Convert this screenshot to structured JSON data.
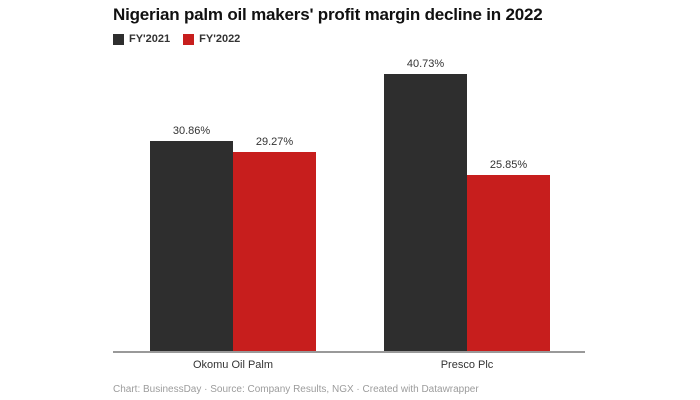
{
  "title": "Nigerian palm oil makers' profit margin decline in 2022",
  "footer": "Chart: BusinessDay · Source: Company Results, NGX · Created with Datawrapper",
  "chart_data": {
    "type": "bar",
    "title": "Nigerian palm oil makers' profit margin decline in 2022",
    "categories": [
      "Okomu Oil Palm",
      "Presco Plc"
    ],
    "series": [
      {
        "name": "FY'2021",
        "color": "#2e2e2e",
        "values": [
          30.86,
          40.73
        ]
      },
      {
        "name": "FY'2022",
        "color": "#c71e1d",
        "values": [
          29.27,
          25.85
        ]
      }
    ],
    "value_labels": [
      [
        "30.86%",
        "40.73%"
      ],
      [
        "29.27%",
        "25.85%"
      ]
    ],
    "unit": "%",
    "ylim": [
      0,
      43.8
    ],
    "grid": false,
    "legend_position": "top-left",
    "attribution": "Chart: BusinessDay · Source: Company Results, NGX · Created with Datawrapper"
  }
}
